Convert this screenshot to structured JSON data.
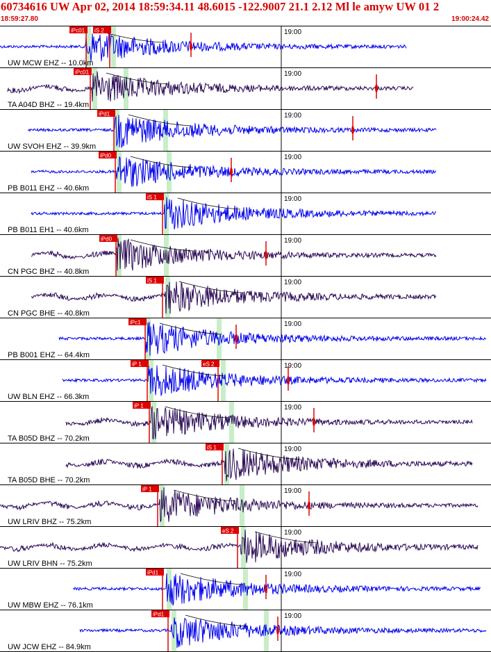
{
  "header": {
    "title": "60734616 UW Apr 02, 2014 18:59:34.11    48.6015 -122.9007 21.1 2.12 Ml le amyw UW 01   2",
    "start_time": "18:59:27.80",
    "end_time": "19:00:24.42"
  },
  "time_tick_label": "19:00",
  "colors": {
    "header_text": "#d60000",
    "trace_blue": "#0000ee",
    "trace_dark": "#2a0a55",
    "pick_box": "#e00000",
    "pick_text": "#ffffff",
    "shade": "#c8eec8",
    "grid": "#000000"
  },
  "traces": [
    {
      "label": "UW MCW EHZ -- 10.0km",
      "color": "blue",
      "picks": [
        "iPc01",
        "iS 2"
      ]
    },
    {
      "label": "TA A04D BHZ -- 19.4km",
      "color": "dark",
      "picks": [
        "iPc01"
      ]
    },
    {
      "label": "UW SVOH EHZ -- 39.9km",
      "color": "blue",
      "picks": [
        "iPd1"
      ]
    },
    {
      "label": "PB B011 EHZ -- 40.6km",
      "color": "blue",
      "picks": [
        "iPd0"
      ]
    },
    {
      "label": "PB B011 EH1 -- 40.6km",
      "color": "blue",
      "picks": [
        "iS 1"
      ]
    },
    {
      "label": "CN PGC BHZ -- 40.8km",
      "color": "dark",
      "picks": [
        "iPd0"
      ]
    },
    {
      "label": "CN PGC BHE -- 40.8km",
      "color": "dark",
      "picks": [
        "iS 1"
      ]
    },
    {
      "label": "PB B001 EHZ -- 64.4km",
      "color": "blue",
      "picks": [
        "iPc1"
      ]
    },
    {
      "label": "UW BLN EHZ -- 66.3km",
      "color": "blue",
      "picks": [
        "iP 1",
        "eS 2"
      ]
    },
    {
      "label": "TA B05D BHZ -- 70.2km",
      "color": "dark",
      "picks": [
        "iP 1"
      ]
    },
    {
      "label": "TA B05D BHE -- 70.2km",
      "color": "dark",
      "picks": [
        "iS 1"
      ]
    },
    {
      "label": "UW LRIV BHZ -- 75.2km",
      "color": "dark",
      "picks": [
        "iP 1"
      ]
    },
    {
      "label": "UW LRIV BHN -- 75.2km",
      "color": "dark",
      "picks": [
        "eS 2"
      ]
    },
    {
      "label": "UW MBW EHZ -- 76.1km",
      "color": "blue",
      "picks": [
        "iPd1"
      ]
    },
    {
      "label": "UW JCW EHZ -- 84.9km",
      "color": "blue",
      "picks": [
        "iPd1"
      ]
    }
  ]
}
